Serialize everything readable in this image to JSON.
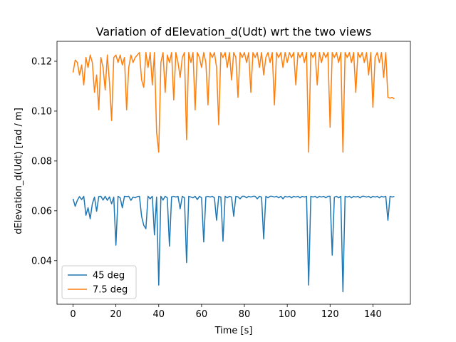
{
  "chart_data": {
    "type": "line",
    "title": "Variation of dElevation_d(Udt) wrt the two views",
    "xlabel": "Time [s]",
    "ylabel": "dElevation_d(Udt) [rad / m]",
    "xlim": [
      -7.5,
      157.5
    ],
    "ylim": [
      0.0225,
      0.128
    ],
    "xticks": [
      0,
      20,
      40,
      60,
      80,
      100,
      120,
      140
    ],
    "yticks": [
      0.04,
      0.06,
      0.08,
      0.1,
      0.12
    ],
    "ytick_labels": [
      "0.04",
      "0.06",
      "0.08",
      "0.10",
      "0.12"
    ],
    "grid": false,
    "legend_position": "lower-left",
    "series": [
      {
        "name": "45 deg",
        "color": "#1f77b4",
        "x": [
          0,
          1,
          2,
          3,
          4,
          5,
          6,
          7,
          8,
          9,
          10,
          11,
          12,
          13,
          14,
          15,
          16,
          17,
          18,
          19,
          20,
          21,
          22,
          23,
          24,
          25,
          26,
          27,
          28,
          29,
          30,
          31,
          32,
          33,
          34,
          35,
          36,
          37,
          38,
          39,
          40,
          41,
          42,
          43,
          44,
          45,
          46,
          47,
          48,
          49,
          50,
          51,
          52,
          53,
          54,
          55,
          56,
          57,
          58,
          59,
          60,
          61,
          62,
          63,
          64,
          65,
          66,
          67,
          68,
          69,
          70,
          71,
          72,
          73,
          74,
          75,
          76,
          77,
          78,
          79,
          80,
          81,
          82,
          83,
          84,
          85,
          86,
          87,
          88,
          89,
          90,
          91,
          92,
          93,
          94,
          95,
          96,
          97,
          98,
          99,
          100,
          101,
          102,
          103,
          104,
          105,
          106,
          107,
          108,
          109,
          110,
          111,
          112,
          113,
          114,
          115,
          116,
          117,
          118,
          119,
          120,
          121,
          122,
          123,
          124,
          125,
          126,
          127,
          128,
          129,
          130,
          131,
          132,
          133,
          134,
          135,
          136,
          137,
          138,
          139,
          140,
          141,
          142,
          143,
          144,
          145,
          146,
          147,
          148,
          149,
          150
        ],
        "values": [
          0.0648,
          0.0618,
          0.0642,
          0.0657,
          0.0645,
          0.0658,
          0.0582,
          0.0612,
          0.0568,
          0.0628,
          0.0655,
          0.0598,
          0.0657,
          0.0658,
          0.0643,
          0.0658,
          0.0642,
          0.0656,
          0.0628,
          0.0655,
          0.0462,
          0.0658,
          0.0652,
          0.0612,
          0.0658,
          0.0657,
          0.0658,
          0.0642,
          0.0655,
          0.0652,
          0.0657,
          0.0658,
          0.0578,
          0.0542,
          0.0528,
          0.0658,
          0.0648,
          0.0658,
          0.0503,
          0.0655,
          0.0302,
          0.0658,
          0.0643,
          0.0658,
          0.0652,
          0.0458,
          0.0656,
          0.0658,
          0.0655,
          0.0658,
          0.0608,
          0.0658,
          0.0652,
          0.0392,
          0.0658,
          0.0655,
          0.0652,
          0.0658,
          0.0645,
          0.0658,
          0.0652,
          0.0475,
          0.0656,
          0.0658,
          0.0655,
          0.0658,
          0.0652,
          0.0562,
          0.0658,
          0.0655,
          0.0478,
          0.0658,
          0.0652,
          0.0658,
          0.0655,
          0.0578,
          0.0658,
          0.0656,
          0.0648,
          0.0658,
          0.0658,
          0.0652,
          0.0658,
          0.0655,
          0.0658,
          0.0658,
          0.0648,
          0.0658,
          0.0655,
          0.0487,
          0.0658,
          0.0652,
          0.0658,
          0.0658,
          0.0655,
          0.0658,
          0.0652,
          0.0658,
          0.0648,
          0.0658,
          0.0655,
          0.0658,
          0.0652,
          0.0658,
          0.0655,
          0.0658,
          0.0652,
          0.0658,
          0.0655,
          0.0658,
          0.0302,
          0.0658,
          0.0655,
          0.0658,
          0.0652,
          0.0658,
          0.0655,
          0.0658,
          0.0652,
          0.0658,
          0.0658,
          0.0422,
          0.0655,
          0.0658,
          0.0652,
          0.0658,
          0.0275,
          0.0658,
          0.0655,
          0.0658,
          0.0652,
          0.0658,
          0.0655,
          0.0658,
          0.0652,
          0.0658,
          0.0658,
          0.0655,
          0.0658,
          0.0652,
          0.0658,
          0.0655,
          0.0658,
          0.0652,
          0.0658,
          0.0655,
          0.0658,
          0.0562,
          0.0658,
          0.0655,
          0.0658
        ]
      },
      {
        "name": "7.5 deg",
        "color": "#ff7f0e",
        "x": [
          0,
          1,
          2,
          3,
          4,
          5,
          6,
          7,
          8,
          9,
          10,
          11,
          12,
          13,
          14,
          15,
          16,
          17,
          18,
          19,
          20,
          21,
          22,
          23,
          24,
          25,
          26,
          27,
          28,
          29,
          30,
          31,
          32,
          33,
          34,
          35,
          36,
          37,
          38,
          39,
          40,
          41,
          42,
          43,
          44,
          45,
          46,
          47,
          48,
          49,
          50,
          51,
          52,
          53,
          54,
          55,
          56,
          57,
          58,
          59,
          60,
          61,
          62,
          63,
          64,
          65,
          66,
          67,
          68,
          69,
          70,
          71,
          72,
          73,
          74,
          75,
          76,
          77,
          78,
          79,
          80,
          81,
          82,
          83,
          84,
          85,
          86,
          87,
          88,
          89,
          90,
          91,
          92,
          93,
          94,
          95,
          96,
          97,
          98,
          99,
          100,
          101,
          102,
          103,
          104,
          105,
          106,
          107,
          108,
          109,
          110,
          111,
          112,
          113,
          114,
          115,
          116,
          117,
          118,
          119,
          120,
          121,
          122,
          123,
          124,
          125,
          126,
          127,
          128,
          129,
          130,
          131,
          132,
          133,
          134,
          135,
          136,
          137,
          138,
          139,
          140,
          141,
          142,
          143,
          144,
          145,
          146,
          147,
          148,
          149,
          150
        ],
        "values": [
          0.1155,
          0.1205,
          0.1195,
          0.1145,
          0.1185,
          0.1105,
          0.1215,
          0.1175,
          0.1225,
          0.1195,
          0.1075,
          0.1145,
          0.1005,
          0.1215,
          0.1175,
          0.1085,
          0.1225,
          0.1115,
          0.0962,
          0.1215,
          0.1225,
          0.1195,
          0.1225,
          0.1185,
          0.1215,
          0.1005,
          0.1175,
          0.1225,
          0.1195,
          0.1215,
          0.1225,
          0.1235,
          0.1125,
          0.1095,
          0.1235,
          0.1175,
          0.1235,
          0.1105,
          0.1235,
          0.0915,
          0.0835,
          0.1195,
          0.1235,
          0.1075,
          0.1225,
          0.1195,
          0.1235,
          0.1045,
          0.1235,
          0.1195,
          0.1135,
          0.1215,
          0.1235,
          0.0885,
          0.1235,
          0.1195,
          0.1235,
          0.1005,
          0.1235,
          0.1215,
          0.1175,
          0.1235,
          0.1195,
          0.1025,
          0.1235,
          0.1215,
          0.1235,
          0.1175,
          0.0945,
          0.1235,
          0.1215,
          0.1235,
          0.1175,
          0.1235,
          0.1125,
          0.1235,
          0.1215,
          0.1055,
          0.1235,
          0.1215,
          0.1235,
          0.1195,
          0.1235,
          0.1075,
          0.1235,
          0.1215,
          0.1235,
          0.1175,
          0.1235,
          0.1145,
          0.1215,
          0.1235,
          0.1195,
          0.1235,
          0.1025,
          0.1235,
          0.1215,
          0.1235,
          0.1175,
          0.1235,
          0.1195,
          0.1235,
          0.1215,
          0.1235,
          0.1105,
          0.1235,
          0.1215,
          0.1235,
          0.1195,
          0.1235,
          0.0835,
          0.1235,
          0.1215,
          0.1235,
          0.1105,
          0.1235,
          0.1195,
          0.1235,
          0.1215,
          0.1235,
          0.0935,
          0.1235,
          0.1215,
          0.1235,
          0.1195,
          0.1235,
          0.0835,
          0.1235,
          0.1215,
          0.1235,
          0.1195,
          0.1235,
          0.1075,
          0.1235,
          0.1215,
          0.1235,
          0.1195,
          0.1235,
          0.1145,
          0.1235,
          0.1015,
          0.1215,
          0.1235,
          0.1195,
          0.1235,
          0.1135,
          0.1235,
          0.1055,
          0.1052,
          0.1055,
          0.1049
        ]
      }
    ]
  }
}
